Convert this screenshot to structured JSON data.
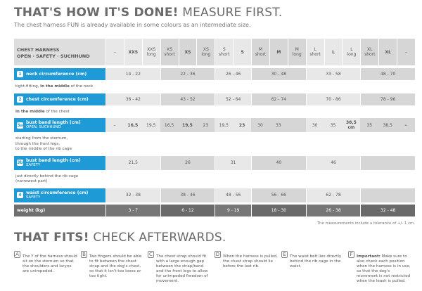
{
  "header": {
    "title_bold": "THAT'S HOW IT'S DONE!",
    "title_light": " MEASURE FIRST.",
    "subtitle": "The chest harness FUN is already available in some colours as an intermediate size."
  },
  "table": {
    "title": "CHEST HARNESS",
    "subtitle": "OPEN · SAFETY · SUCHHUND",
    "columns": [
      {
        "size": "–"
      },
      {
        "size": "XXS"
      },
      {
        "size": "XXS",
        "variant": "long"
      },
      {
        "size": "XS",
        "variant": "short"
      },
      {
        "size": "XS"
      },
      {
        "size": "XS",
        "variant": "long"
      },
      {
        "size": "S",
        "variant": "short"
      },
      {
        "size": "S"
      },
      {
        "size": "M",
        "variant": "short"
      },
      {
        "size": "M"
      },
      {
        "size": "M",
        "variant": "long"
      },
      {
        "size": "L",
        "variant": "short"
      },
      {
        "size": "L"
      },
      {
        "size": "L",
        "variant": "long"
      },
      {
        "size": "XL",
        "variant": "short"
      },
      {
        "size": "XL"
      },
      {
        "size": "–"
      }
    ],
    "rows": [
      {
        "kind": "measure",
        "num": "1",
        "label": "neck circumference (cm)",
        "values": [
          "14 - 22",
          "22 - 36",
          "26 - 46",
          "30 - 48",
          "33 - 58",
          "48 - 70"
        ]
      },
      {
        "kind": "note",
        "lines": [
          [
            {
              "text": "tight-fitting, "
            },
            {
              "text": "in the middle",
              "bold": true
            },
            {
              "text": " of the neck"
            }
          ]
        ]
      },
      {
        "kind": "measure",
        "num": "2",
        "label": "chest circumference (cm)",
        "values": [
          "36 - 42",
          "43 - 52",
          "52 - 64",
          "62 - 74",
          "70 - 86",
          "78 - 96"
        ]
      },
      {
        "kind": "note",
        "lines": [
          [
            {
              "text": "in the middle",
              "bold": true
            },
            {
              "text": " of the chest"
            }
          ]
        ]
      },
      {
        "kind": "measure",
        "num": "3a",
        "label": "bust band length (cm)",
        "sublabel": "OPEN, SUCHHUND",
        "values": [
          "–",
          "16,5",
          "19,5",
          "16,5",
          "19,5",
          "23",
          "19,5",
          "23",
          "30",
          "33",
          null,
          "30",
          "35",
          "38,5 cm",
          "35",
          "38,5",
          "–"
        ]
      },
      {
        "kind": "note",
        "lines": [
          [
            {
              "text": "starting from the sternum,"
            }
          ],
          [
            {
              "text": "through the front legs,"
            }
          ],
          [
            {
              "text": "to the middle of the rib cage"
            }
          ]
        ]
      },
      {
        "kind": "measure",
        "num": "3b",
        "label": "bust band length (cm)",
        "sublabel": "SAFETY",
        "values": [
          "21,5",
          "26",
          "31",
          "40",
          "46"
        ]
      },
      {
        "kind": "note",
        "lines": [
          [
            {
              "text": "just directly behind the rib cage"
            }
          ],
          [
            {
              "text": "(narrowest part)"
            }
          ]
        ]
      },
      {
        "kind": "measure",
        "num": "4",
        "label": "waist circumference (cm)",
        "sublabel": "SAFETY",
        "values": [
          "32 - 38",
          "38 - 46",
          "48 - 56",
          "56 - 66",
          "62 - 78"
        ]
      },
      {
        "kind": "weight",
        "label": "weight (kg)",
        "values": [
          "3 - 7",
          "6 - 12",
          "9 - 19",
          "18 - 30",
          "26 - 38",
          "32 - 48"
        ]
      }
    ],
    "footnote": "The measurements include a tolerance of +/- 1 cm."
  },
  "checks": {
    "title_bold": "THAT FITS!",
    "title_light": " CHECK AFTERWARDS.",
    "steps": [
      {
        "letter": "A",
        "text": "The Y of the harness should sit on the sternum so that the shoulders and larynx are unimpeded."
      },
      {
        "letter": "B",
        "text": "Two fingers should be able to fit between the chest strap and the dog's chest, so that it isn't too loose or too tight."
      },
      {
        "letter": "C",
        "text": "The chest strap should fit with a large enough gap between the strap/band and the front legs to allow for unimpeded freedom of movement."
      },
      {
        "letter": "D",
        "text": "When the harness is pulled, the chest strap should lie before the last rib."
      },
      {
        "letter": "E",
        "text": "The waist belt lies directly behind the rib cage in the waist."
      },
      {
        "letter": "F",
        "bold": "Important:",
        "text": " Make sure to also check each position when the harness is in use, so that the dog's movement is not restricted when the leash is pulled."
      }
    ]
  }
}
